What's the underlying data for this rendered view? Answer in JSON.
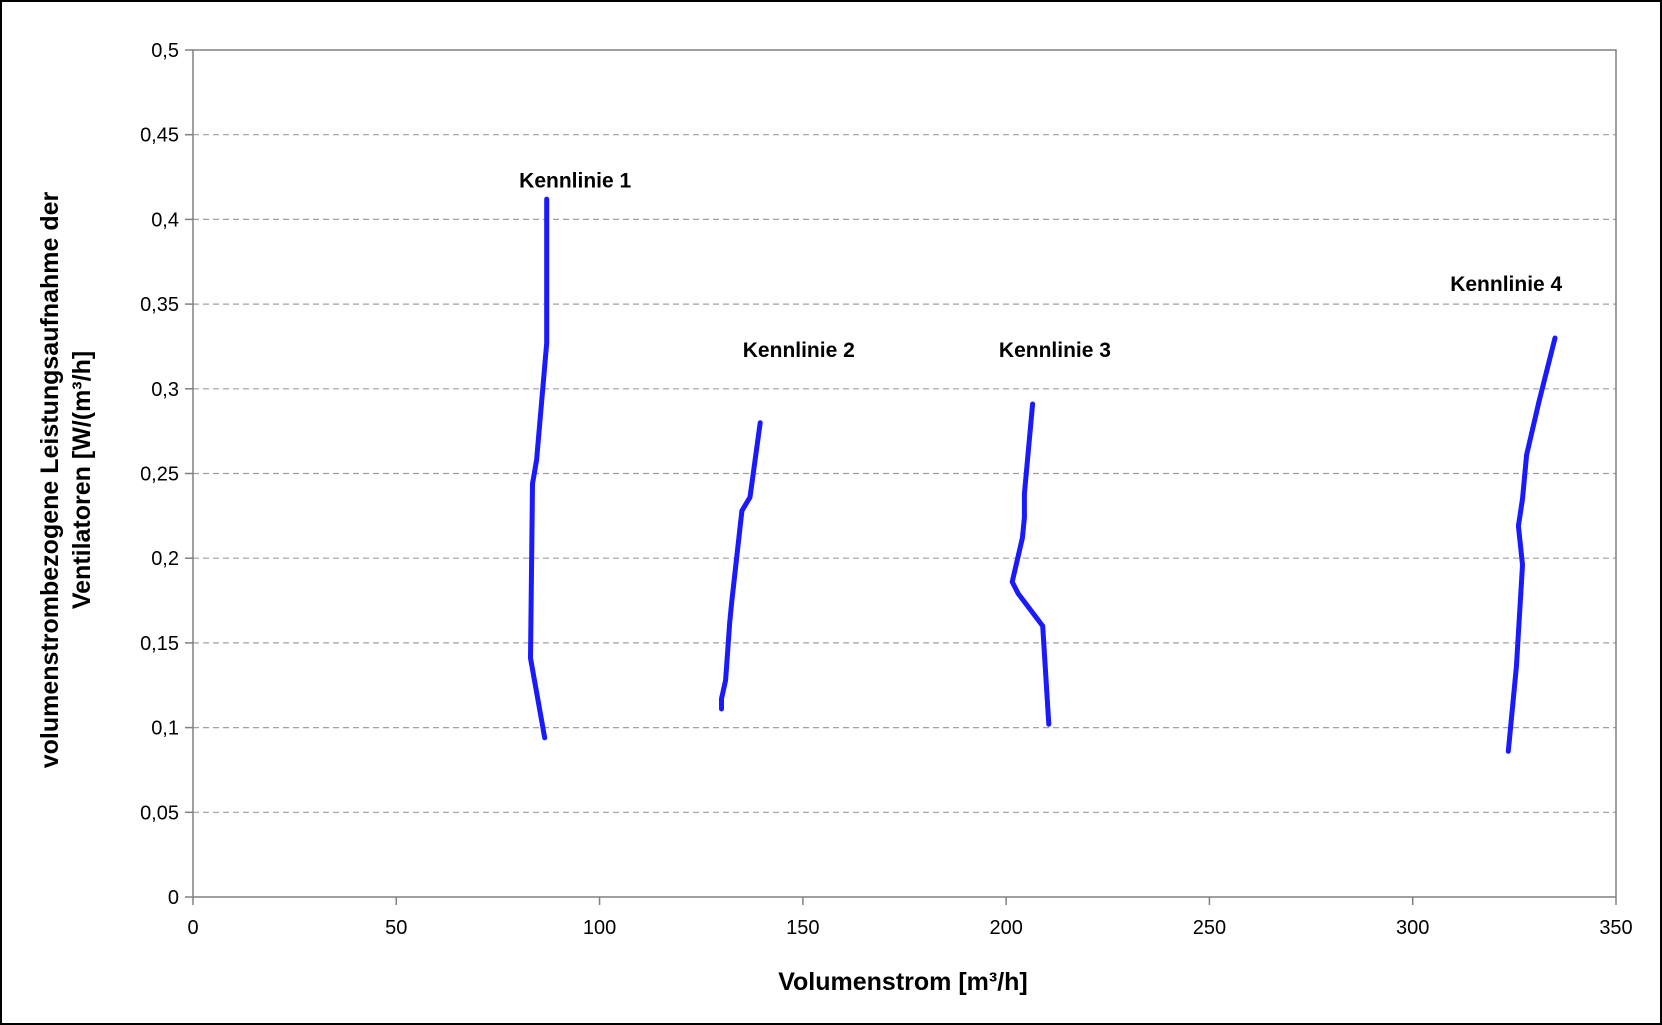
{
  "chart_data": {
    "type": "line",
    "title": "",
    "xlabel": "Volumenstrom [m³/h]",
    "ylabel_line1": "volumenstrombezogene Leistungsaufnahme der",
    "ylabel_line2": "Ventilatoren [W/(m³/h]",
    "xlim": [
      0,
      350
    ],
    "ylim": [
      0,
      0.5
    ],
    "x_ticks": [
      0,
      50,
      100,
      150,
      200,
      250,
      300,
      350
    ],
    "x_tick_labels": [
      "0",
      "50",
      "100",
      "150",
      "200",
      "250",
      "300",
      "350"
    ],
    "y_ticks": [
      0,
      0.05,
      0.1,
      0.15,
      0.2,
      0.25,
      0.3,
      0.35,
      0.4,
      0.45,
      0.5
    ],
    "y_tick_labels": [
      "0",
      "0,05",
      "0,1",
      "0,15",
      "0,2",
      "0,25",
      "0,3",
      "0,35",
      "0,4",
      "0,45",
      "0,5"
    ],
    "grid": "horizontal-dashed",
    "line_color": "#1a1aff",
    "series": [
      {
        "name": "Kennlinie 1",
        "x": [
          87.0,
          87.0,
          84.5,
          83.5,
          83.0,
          83.0,
          86.5
        ],
        "y": [
          0.412,
          0.327,
          0.258,
          0.244,
          0.141,
          0.141,
          0.094
        ]
      },
      {
        "name": "Kennlinie 2",
        "x": [
          139.5,
          137.0,
          135.0,
          132.5,
          132.0,
          131.0,
          130.0,
          130.0
        ],
        "y": [
          0.28,
          0.236,
          0.228,
          0.174,
          0.162,
          0.128,
          0.117,
          0.111
        ]
      },
      {
        "name": "Kennlinie 3",
        "x": [
          206.5,
          204.5,
          204.5,
          204.0,
          201.5,
          203.0,
          209.0,
          210.5
        ],
        "y": [
          0.291,
          0.238,
          0.224,
          0.212,
          0.186,
          0.179,
          0.16,
          0.102
        ]
      },
      {
        "name": "Kennlinie 4",
        "x": [
          335.0,
          331.0,
          328.0,
          327.0,
          326.0,
          327.0,
          325.5,
          323.5
        ],
        "y": [
          0.33,
          0.292,
          0.261,
          0.235,
          0.219,
          0.196,
          0.136,
          0.086
        ]
      }
    ],
    "annotations": [
      {
        "text": "Kennlinie 1",
        "x": 94,
        "y": 0.423
      },
      {
        "text": "Kennlinie 2",
        "x": 149,
        "y": 0.323
      },
      {
        "text": "Kennlinie 3",
        "x": 212,
        "y": 0.323
      },
      {
        "text": "Kennlinie 4",
        "x": 323,
        "y": 0.362
      }
    ]
  }
}
